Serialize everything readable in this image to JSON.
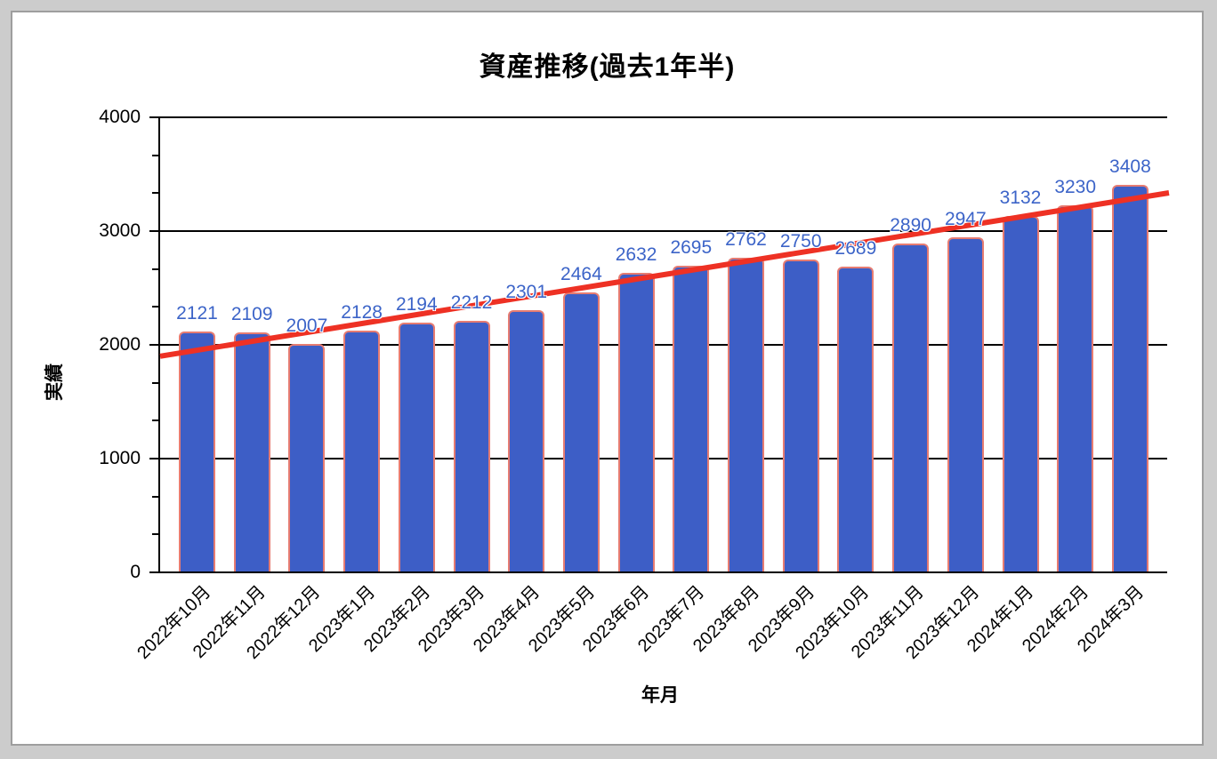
{
  "window": {
    "background_color": "#cccccc",
    "card_background": "#ffffff",
    "card_border_color": "#9e9e9e"
  },
  "chart_data": {
    "type": "bar",
    "title": "資産推移(過去1年半)",
    "xlabel": "年月",
    "ylabel": "実績",
    "categories": [
      "2022年10月",
      "2022年11月",
      "2022年12月",
      "2023年1月",
      "2023年2月",
      "2023年3月",
      "2023年4月",
      "2023年5月",
      "2023年6月",
      "2023年7月",
      "2023年8月",
      "2023年9月",
      "2023年10月",
      "2023年11月",
      "2023年12月",
      "2024年1月",
      "2024年2月",
      "2024年3月"
    ],
    "values": [
      2121,
      2109,
      2007,
      2128,
      2194,
      2212,
      2301,
      2464,
      2632,
      2695,
      2762,
      2750,
      2689,
      2890,
      2947,
      3132,
      3230,
      3408
    ],
    "data_labels_shown": true,
    "ylim": [
      0,
      4000
    ],
    "yticks": [
      0,
      1000,
      2000,
      3000,
      4000
    ],
    "minor_ticks_between_majors": 2,
    "grid": "horizontal-major",
    "legend": "none",
    "x_label_rotation_deg": -45,
    "trendline": {
      "type": "linear",
      "start_value": 1900,
      "end_value": 3336
    },
    "colors": {
      "bar_fill": "#3d5ec6",
      "bar_border": "#e67c72",
      "data_label": "#3c64c8",
      "trend_line": "#ee3124",
      "axis_and_grid": "#000000",
      "title_text": "#000000"
    }
  }
}
